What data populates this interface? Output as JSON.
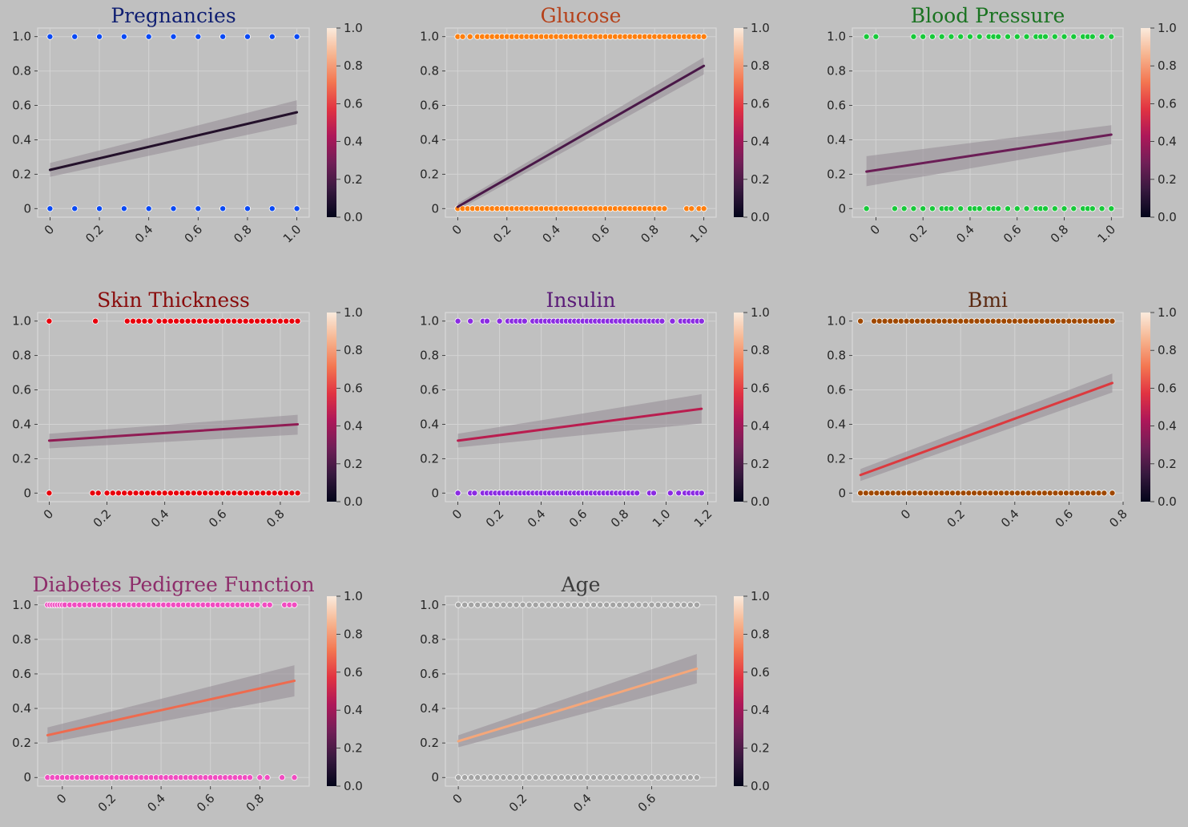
{
  "figure": {
    "background": "#c0c0c0",
    "plot_background": "#c0c0c0",
    "grid_color": "#d3d3d3",
    "spine_color": "#d9d9d9",
    "band_color": "#948b93"
  },
  "colorbar": {
    "ticks": [
      0.0,
      0.2,
      0.4,
      0.6,
      0.8,
      1.0
    ],
    "tick_labels": [
      "0.0",
      "0.2",
      "0.4",
      "0.6",
      "0.8",
      "1.0"
    ],
    "colormap": "rocket",
    "stops": [
      "#03051a",
      "#36193e",
      "#701f57",
      "#ad1759",
      "#e13342",
      "#f37651",
      "#f6b48f",
      "#faebdd"
    ]
  },
  "chart_data": [
    {
      "type": "scatter",
      "title": "Pregnancies",
      "title_color": "#101f72",
      "point_color": "#0a49f5",
      "xlim": [
        -0.05,
        1.05
      ],
      "ylim": [
        -0.05,
        1.05
      ],
      "xticks": [
        0,
        0.2,
        0.4,
        0.6,
        0.8,
        1.0
      ],
      "xtick_labels": [
        "0",
        "0.2",
        "0.4",
        "0.6",
        "0.8",
        "1.0"
      ],
      "yticks": [
        0,
        0.2,
        0.4,
        0.6,
        0.8,
        1.0
      ],
      "ytick_labels": [
        "0",
        "0.2",
        "0.4",
        "0.6",
        "0.8",
        "1.0"
      ],
      "points_y1": [
        0,
        0.1,
        0.2,
        0.3,
        0.4,
        0.5,
        0.6,
        0.7,
        0.8,
        0.9,
        1.0
      ],
      "points_y0": [
        0,
        0.1,
        0.2,
        0.3,
        0.4,
        0.5,
        0.6,
        0.7,
        0.8,
        0.9,
        1.0
      ],
      "regression": {
        "x": [
          0,
          1.0
        ],
        "y": [
          0.225,
          0.56
        ],
        "band_lower": [
          0.185,
          0.49
        ],
        "band_upper": [
          0.265,
          0.63
        ],
        "color": "#24112b"
      }
    },
    {
      "type": "scatter",
      "title": "Glucose",
      "title_color": "#b5411a",
      "point_color": "#ff7f0e",
      "xlim": [
        -0.05,
        1.05
      ],
      "ylim": [
        -0.05,
        1.05
      ],
      "xticks": [
        0,
        0.2,
        0.4,
        0.6,
        0.8,
        1.0
      ],
      "xtick_labels": [
        "0",
        "0.2",
        "0.4",
        "0.6",
        "0.8",
        "1.0"
      ],
      "yticks": [
        0,
        0.2,
        0.4,
        0.6,
        0.8,
        1.0
      ],
      "ytick_labels": [
        "0",
        "0.2",
        "0.4",
        "0.6",
        "0.8",
        "1.0"
      ],
      "points_y1": [
        0,
        0.02,
        0.05,
        0.08,
        0.1,
        0.12,
        0.14,
        0.16,
        0.18,
        0.2,
        0.22,
        0.24,
        0.26,
        0.28,
        0.3,
        0.32,
        0.34,
        0.36,
        0.38,
        0.4,
        0.42,
        0.44,
        0.46,
        0.48,
        0.5,
        0.52,
        0.54,
        0.56,
        0.58,
        0.6,
        0.62,
        0.64,
        0.66,
        0.68,
        0.7,
        0.72,
        0.74,
        0.76,
        0.78,
        0.8,
        0.82,
        0.84,
        0.86,
        0.88,
        0.9,
        0.92,
        0.94,
        0.96,
        0.98,
        1.0
      ],
      "points_y0": [
        0,
        0.02,
        0.04,
        0.06,
        0.08,
        0.1,
        0.12,
        0.14,
        0.16,
        0.18,
        0.2,
        0.22,
        0.24,
        0.26,
        0.28,
        0.3,
        0.32,
        0.34,
        0.36,
        0.38,
        0.4,
        0.42,
        0.44,
        0.46,
        0.48,
        0.5,
        0.52,
        0.54,
        0.56,
        0.58,
        0.6,
        0.62,
        0.64,
        0.66,
        0.68,
        0.7,
        0.72,
        0.74,
        0.76,
        0.78,
        0.8,
        0.82,
        0.84,
        0.93,
        0.95,
        0.98,
        1.0
      ],
      "regression": {
        "x": [
          0,
          1.0
        ],
        "y": [
          0.01,
          0.83
        ],
        "band_lower": [
          -0.01,
          0.78
        ],
        "band_upper": [
          0.03,
          0.88
        ],
        "color": "#4a1848"
      }
    },
    {
      "type": "scatter",
      "title": "Blood Pressure",
      "title_color": "#1a7321",
      "point_color": "#18c93a",
      "xlim": [
        -0.1,
        1.05
      ],
      "ylim": [
        -0.05,
        1.05
      ],
      "xticks": [
        0,
        0.2,
        0.4,
        0.6,
        0.8,
        1.0
      ],
      "xtick_labels": [
        "0",
        "0.2",
        "0.4",
        "0.6",
        "0.8",
        "1.0"
      ],
      "yticks": [
        0,
        0.2,
        0.4,
        0.6,
        0.8,
        1.0
      ],
      "ytick_labels": [
        "0",
        "0.2",
        "0.4",
        "0.6",
        "0.8",
        "1.0"
      ],
      "points_y1": [
        -0.04,
        0,
        0.16,
        0.2,
        0.24,
        0.28,
        0.32,
        0.36,
        0.4,
        0.44,
        0.48,
        0.5,
        0.52,
        0.56,
        0.6,
        0.64,
        0.68,
        0.7,
        0.72,
        0.76,
        0.8,
        0.84,
        0.88,
        0.9,
        0.92,
        0.96,
        1.0
      ],
      "points_y0": [
        -0.04,
        0.08,
        0.12,
        0.16,
        0.2,
        0.24,
        0.28,
        0.3,
        0.32,
        0.36,
        0.4,
        0.42,
        0.44,
        0.48,
        0.5,
        0.52,
        0.56,
        0.6,
        0.64,
        0.68,
        0.7,
        0.72,
        0.76,
        0.8,
        0.84,
        0.88,
        0.9,
        0.92,
        0.96,
        1.0
      ],
      "regression": {
        "x": [
          -0.04,
          1.0
        ],
        "y": [
          0.215,
          0.43
        ],
        "band_lower": [
          0.13,
          0.375
        ],
        "band_upper": [
          0.305,
          0.485
        ],
        "color": "#6b1e56"
      }
    },
    {
      "type": "scatter",
      "title": "Skin Thickness",
      "title_color": "#890b0b",
      "point_color": "#e8000b",
      "xlim": [
        -0.04,
        0.9
      ],
      "ylim": [
        -0.05,
        1.05
      ],
      "xticks": [
        0,
        0.2,
        0.4,
        0.6,
        0.8
      ],
      "xtick_labels": [
        "0",
        "0.2",
        "0.4",
        "0.6",
        "0.8"
      ],
      "yticks": [
        0,
        0.2,
        0.4,
        0.6,
        0.8,
        1.0
      ],
      "ytick_labels": [
        "0",
        "0.2",
        "0.4",
        "0.6",
        "0.8",
        "1.0"
      ],
      "points_y1": [
        0,
        0.16,
        0.27,
        0.29,
        0.31,
        0.33,
        0.35,
        0.38,
        0.4,
        0.42,
        0.44,
        0.46,
        0.48,
        0.5,
        0.52,
        0.54,
        0.56,
        0.58,
        0.6,
        0.62,
        0.64,
        0.66,
        0.68,
        0.7,
        0.72,
        0.74,
        0.76,
        0.78,
        0.8,
        0.82,
        0.84,
        0.86
      ],
      "points_y0": [
        0,
        0.15,
        0.17,
        0.2,
        0.22,
        0.24,
        0.26,
        0.28,
        0.3,
        0.32,
        0.34,
        0.36,
        0.38,
        0.4,
        0.42,
        0.44,
        0.46,
        0.48,
        0.5,
        0.52,
        0.54,
        0.56,
        0.58,
        0.6,
        0.62,
        0.64,
        0.66,
        0.68,
        0.7,
        0.72,
        0.74,
        0.76,
        0.78,
        0.8,
        0.82,
        0.84,
        0.86
      ],
      "regression": {
        "x": [
          0,
          0.86
        ],
        "y": [
          0.305,
          0.4
        ],
        "band_lower": [
          0.26,
          0.34
        ],
        "band_upper": [
          0.345,
          0.455
        ],
        "color": "#901c54"
      }
    },
    {
      "type": "scatter",
      "title": "Insulin",
      "title_color": "#5a1a77",
      "point_color": "#8b2be2",
      "xlim": [
        -0.06,
        1.24
      ],
      "ylim": [
        -0.05,
        1.05
      ],
      "xticks": [
        0,
        0.2,
        0.4,
        0.6,
        0.8,
        1.0,
        1.2
      ],
      "xtick_labels": [
        "0",
        "0.2",
        "0.4",
        "0.6",
        "0.8",
        "1.0",
        "1.2"
      ],
      "yticks": [
        0,
        0.2,
        0.4,
        0.6,
        0.8,
        1.0
      ],
      "ytick_labels": [
        "0",
        "0.2",
        "0.4",
        "0.6",
        "0.8",
        "1.0"
      ],
      "points_y1": [
        0,
        0.06,
        0.12,
        0.14,
        0.2,
        0.24,
        0.26,
        0.28,
        0.3,
        0.32,
        0.36,
        0.38,
        0.4,
        0.42,
        0.44,
        0.46,
        0.48,
        0.5,
        0.52,
        0.54,
        0.56,
        0.58,
        0.6,
        0.62,
        0.64,
        0.66,
        0.68,
        0.7,
        0.72,
        0.74,
        0.76,
        0.78,
        0.8,
        0.82,
        0.84,
        0.86,
        0.88,
        0.9,
        0.92,
        0.94,
        0.96,
        0.98,
        1.03,
        1.07,
        1.09,
        1.11,
        1.13,
        1.15,
        1.17
      ],
      "points_y0": [
        0,
        0.06,
        0.08,
        0.12,
        0.14,
        0.16,
        0.18,
        0.2,
        0.22,
        0.24,
        0.26,
        0.28,
        0.3,
        0.32,
        0.34,
        0.36,
        0.38,
        0.4,
        0.42,
        0.44,
        0.46,
        0.48,
        0.5,
        0.52,
        0.54,
        0.56,
        0.58,
        0.6,
        0.62,
        0.64,
        0.66,
        0.68,
        0.7,
        0.72,
        0.74,
        0.76,
        0.78,
        0.8,
        0.82,
        0.84,
        0.86,
        0.92,
        0.94,
        1.02,
        1.06,
        1.09,
        1.11,
        1.13,
        1.15,
        1.17
      ],
      "regression": {
        "x": [
          0,
          1.17
        ],
        "y": [
          0.305,
          0.49
        ],
        "band_lower": [
          0.265,
          0.405
        ],
        "band_upper": [
          0.345,
          0.575
        ],
        "color": "#b91d4f"
      }
    },
    {
      "type": "scatter",
      "title": "Bmi",
      "title_color": "#5b2a12",
      "point_color": "#9f4800",
      "xlim": [
        -0.2,
        0.8
      ],
      "ylim": [
        -0.05,
        1.05
      ],
      "xticks": [
        0,
        0.2,
        0.4,
        0.6,
        0.8
      ],
      "xtick_labels": [
        "0",
        "0.2",
        "0.4",
        "0.6",
        "0.8"
      ],
      "yticks": [
        0,
        0.2,
        0.4,
        0.6,
        0.8,
        1.0
      ],
      "ytick_labels": [
        "0",
        "0.2",
        "0.4",
        "0.6",
        "0.8",
        "1.0"
      ],
      "points_y1": [
        -0.17,
        -0.12,
        -0.1,
        -0.08,
        -0.06,
        -0.04,
        -0.02,
        0,
        0.02,
        0.04,
        0.06,
        0.08,
        0.1,
        0.12,
        0.14,
        0.16,
        0.18,
        0.2,
        0.22,
        0.24,
        0.26,
        0.28,
        0.3,
        0.32,
        0.34,
        0.36,
        0.38,
        0.4,
        0.42,
        0.44,
        0.46,
        0.48,
        0.5,
        0.52,
        0.54,
        0.56,
        0.58,
        0.6,
        0.62,
        0.64,
        0.66,
        0.68,
        0.7,
        0.72,
        0.74,
        0.76
      ],
      "points_y0": [
        -0.17,
        -0.15,
        -0.13,
        -0.11,
        -0.09,
        -0.07,
        -0.05,
        -0.03,
        -0.01,
        0.01,
        0.03,
        0.05,
        0.07,
        0.09,
        0.11,
        0.13,
        0.15,
        0.17,
        0.19,
        0.21,
        0.23,
        0.25,
        0.27,
        0.29,
        0.31,
        0.33,
        0.35,
        0.37,
        0.39,
        0.41,
        0.43,
        0.45,
        0.47,
        0.49,
        0.51,
        0.53,
        0.55,
        0.57,
        0.59,
        0.61,
        0.63,
        0.65,
        0.67,
        0.69,
        0.71,
        0.73,
        0.76
      ],
      "regression": {
        "x": [
          -0.17,
          0.76
        ],
        "y": [
          0.105,
          0.64
        ],
        "band_lower": [
          0.07,
          0.585
        ],
        "band_upper": [
          0.14,
          0.695
        ],
        "color": "#dc3a3f"
      }
    },
    {
      "type": "scatter",
      "title": "Diabetes Pedigree Function",
      "title_color": "#8d2d6a",
      "point_color": "#f14cc1",
      "xlim": [
        -0.1,
        1.0
      ],
      "ylim": [
        -0.05,
        1.05
      ],
      "xticks": [
        0,
        0.2,
        0.4,
        0.6,
        0.8
      ],
      "xtick_labels": [
        "0",
        "0.2",
        "0.4",
        "0.6",
        "0.8"
      ],
      "yticks": [
        0,
        0.2,
        0.4,
        0.6,
        0.8,
        1.0
      ],
      "ytick_labels": [
        "0",
        "0.2",
        "0.4",
        "0.6",
        "0.8",
        "1.0"
      ],
      "points_y1": [
        -0.06,
        -0.05,
        -0.04,
        -0.03,
        -0.02,
        -0.01,
        0,
        0.01,
        0.03,
        0.05,
        0.07,
        0.09,
        0.11,
        0.13,
        0.15,
        0.17,
        0.19,
        0.21,
        0.23,
        0.25,
        0.27,
        0.29,
        0.31,
        0.33,
        0.35,
        0.37,
        0.39,
        0.41,
        0.43,
        0.45,
        0.47,
        0.49,
        0.51,
        0.53,
        0.55,
        0.57,
        0.59,
        0.61,
        0.63,
        0.65,
        0.67,
        0.69,
        0.71,
        0.73,
        0.75,
        0.77,
        0.79,
        0.82,
        0.84,
        0.9,
        0.92,
        0.94
      ],
      "points_y0": [
        -0.06,
        -0.04,
        -0.02,
        0,
        0.02,
        0.04,
        0.06,
        0.08,
        0.1,
        0.12,
        0.14,
        0.16,
        0.18,
        0.2,
        0.22,
        0.24,
        0.26,
        0.28,
        0.3,
        0.32,
        0.34,
        0.36,
        0.38,
        0.4,
        0.42,
        0.44,
        0.46,
        0.48,
        0.5,
        0.52,
        0.54,
        0.56,
        0.58,
        0.6,
        0.62,
        0.64,
        0.66,
        0.68,
        0.7,
        0.72,
        0.74,
        0.76,
        0.8,
        0.83,
        0.89,
        0.94
      ],
      "regression": {
        "x": [
          -0.06,
          0.94
        ],
        "y": [
          0.245,
          0.56
        ],
        "band_lower": [
          0.2,
          0.47
        ],
        "band_upper": [
          0.29,
          0.65
        ],
        "color": "#ee6b4f"
      }
    },
    {
      "type": "scatter",
      "title": "Age",
      "title_color": "#3b3b3b",
      "point_color": "#a3a3a3",
      "xlim": [
        -0.04,
        0.8
      ],
      "ylim": [
        -0.05,
        1.05
      ],
      "xticks": [
        0,
        0.2,
        0.4,
        0.6
      ],
      "xtick_labels": [
        "0",
        "0.2",
        "0.4",
        "0.6"
      ],
      "yticks": [
        0,
        0.2,
        0.4,
        0.6,
        0.8,
        1.0
      ],
      "ytick_labels": [
        "0",
        "0.2",
        "0.4",
        "0.6",
        "0.8",
        "1.0"
      ],
      "points_y1": [
        0,
        0.02,
        0.04,
        0.06,
        0.08,
        0.1,
        0.12,
        0.14,
        0.16,
        0.18,
        0.2,
        0.22,
        0.24,
        0.26,
        0.28,
        0.3,
        0.32,
        0.34,
        0.36,
        0.38,
        0.4,
        0.42,
        0.44,
        0.46,
        0.48,
        0.5,
        0.52,
        0.54,
        0.56,
        0.58,
        0.6,
        0.62,
        0.64,
        0.66,
        0.68,
        0.7,
        0.72,
        0.74
      ],
      "points_y0": [
        0,
        0.02,
        0.04,
        0.06,
        0.08,
        0.1,
        0.12,
        0.14,
        0.16,
        0.18,
        0.2,
        0.22,
        0.24,
        0.26,
        0.28,
        0.3,
        0.32,
        0.34,
        0.36,
        0.38,
        0.4,
        0.42,
        0.44,
        0.46,
        0.48,
        0.5,
        0.52,
        0.54,
        0.56,
        0.58,
        0.6,
        0.62,
        0.64,
        0.66,
        0.68,
        0.7,
        0.72,
        0.74
      ],
      "regression": {
        "x": [
          0,
          0.74
        ],
        "y": [
          0.21,
          0.63
        ],
        "band_lower": [
          0.175,
          0.545
        ],
        "band_upper": [
          0.245,
          0.715
        ],
        "color": "#f5a77a"
      }
    }
  ]
}
